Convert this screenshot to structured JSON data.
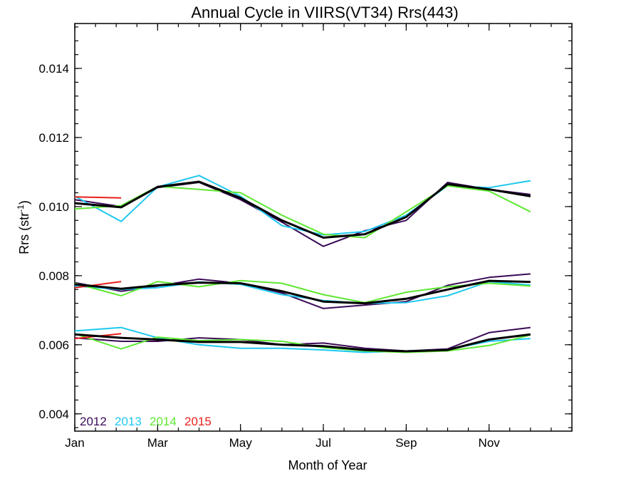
{
  "chart_data": {
    "type": "line",
    "title": "Annual Cycle in VIIRS(VT34) Rrs(443)",
    "xlabel": "Month of Year",
    "ylabel_main": "Rrs (str",
    "ylabel_sup": "-1",
    "ylabel_close": ")",
    "xlim": [
      0.5,
      12.5
    ],
    "ylim": [
      0.0035,
      0.0153
    ],
    "xticks": [
      {
        "value": 0.5,
        "label": "Jan"
      },
      {
        "value": 2.5,
        "label": "Mar"
      },
      {
        "value": 4.5,
        "label": "May"
      },
      {
        "value": 6.5,
        "label": "Jul"
      },
      {
        "value": 8.5,
        "label": "Sep"
      },
      {
        "value": 10.5,
        "label": "Nov"
      }
    ],
    "yticks": [
      {
        "value": 0.004,
        "label": "0.004"
      },
      {
        "value": 0.006,
        "label": "0.006"
      },
      {
        "value": 0.008,
        "label": "0.008"
      },
      {
        "value": 0.01,
        "label": "0.010"
      },
      {
        "value": 0.012,
        "label": "0.012"
      },
      {
        "value": 0.014,
        "label": "0.014"
      }
    ],
    "legend_position": "bottom-left",
    "series": [
      {
        "name": "2012",
        "color": "#3b0a57",
        "group": "upper",
        "x": [
          0.5,
          1.62,
          2.5,
          3.5,
          4.5,
          5.5,
          6.5,
          7.5,
          8.5,
          9.5,
          10.5,
          11.5
        ],
        "y": [
          0.0102,
          0.01,
          0.01055,
          0.0107,
          0.0102,
          0.00955,
          0.00885,
          0.0093,
          0.0096,
          0.0107,
          0.0105,
          0.01035
        ]
      },
      {
        "name": "2013",
        "color": "#1ec8f0",
        "group": "upper",
        "x": [
          0.5,
          1.62,
          2.5,
          3.5,
          4.5,
          5.5,
          6.5,
          7.5,
          8.5,
          9.5,
          10.5,
          11.5
        ],
        "y": [
          0.0103,
          0.00957,
          0.01057,
          0.0109,
          0.0103,
          0.00945,
          0.00918,
          0.00928,
          0.00975,
          0.0106,
          0.01055,
          0.01075
        ]
      },
      {
        "name": "2014",
        "color": "#5ee832",
        "group": "upper",
        "x": [
          0.5,
          1.62,
          2.5,
          3.5,
          4.5,
          5.5,
          6.5,
          7.5,
          8.5,
          9.5,
          10.5,
          11.5
        ],
        "y": [
          0.00993,
          0.01003,
          0.01058,
          0.0105,
          0.0104,
          0.00975,
          0.0092,
          0.0091,
          0.00985,
          0.0106,
          0.01045,
          0.00985
        ]
      },
      {
        "name": "2015",
        "color": "#e8201c",
        "group": "upper",
        "x": [
          0.5,
          1.62
        ],
        "y": [
          0.01028,
          0.01025
        ]
      },
      {
        "name": "",
        "color": "#000000",
        "group": "upper-mean",
        "x": [
          0.5,
          1.62,
          2.5,
          3.5,
          4.5,
          5.5,
          6.5,
          7.5,
          8.5,
          9.5,
          10.5,
          11.5
        ],
        "y": [
          0.0101,
          0.00998,
          0.01057,
          0.01072,
          0.01025,
          0.0096,
          0.0091,
          0.0092,
          0.0097,
          0.01065,
          0.0105,
          0.0103
        ]
      },
      {
        "name": "2012",
        "color": "#3b0a57",
        "group": "middle",
        "x": [
          0.5,
          1.62,
          2.5,
          3.5,
          4.5,
          5.5,
          6.5,
          7.5,
          8.5,
          9.5,
          10.5,
          11.5
        ],
        "y": [
          0.0078,
          0.00755,
          0.0077,
          0.0079,
          0.00778,
          0.0075,
          0.00705,
          0.00715,
          0.00725,
          0.00772,
          0.00795,
          0.00805
        ]
      },
      {
        "name": "2013",
        "color": "#1ec8f0",
        "group": "middle",
        "x": [
          0.5,
          1.62,
          2.5,
          3.5,
          4.5,
          5.5,
          6.5,
          7.5,
          8.5,
          9.5,
          10.5,
          11.5
        ],
        "y": [
          0.0077,
          0.0076,
          0.00765,
          0.00782,
          0.00775,
          0.00745,
          0.00728,
          0.0072,
          0.00722,
          0.00742,
          0.00783,
          0.00773
        ]
      },
      {
        "name": "2014",
        "color": "#5ee832",
        "group": "middle",
        "x": [
          0.5,
          1.62,
          2.5,
          3.5,
          4.5,
          5.5,
          6.5,
          7.5,
          8.5,
          9.5,
          10.5,
          11.5
        ],
        "y": [
          0.00778,
          0.00742,
          0.00783,
          0.00768,
          0.00786,
          0.00778,
          0.00745,
          0.00722,
          0.00752,
          0.00768,
          0.00778,
          0.0077
        ]
      },
      {
        "name": "2015",
        "color": "#e8201c",
        "group": "middle",
        "x": [
          0.5,
          1.62
        ],
        "y": [
          0.00765,
          0.00783
        ]
      },
      {
        "name": "",
        "color": "#000000",
        "group": "middle-mean",
        "x": [
          0.5,
          1.62,
          2.5,
          3.5,
          4.5,
          5.5,
          6.5,
          7.5,
          8.5,
          9.5,
          10.5,
          11.5
        ],
        "y": [
          0.00775,
          0.00762,
          0.00772,
          0.0078,
          0.00778,
          0.00755,
          0.00725,
          0.0072,
          0.00733,
          0.0076,
          0.00785,
          0.00782
        ]
      },
      {
        "name": "2012",
        "color": "#3b0a57",
        "group": "lower",
        "x": [
          0.5,
          1.62,
          2.5,
          3.5,
          4.5,
          5.5,
          6.5,
          7.5,
          8.5,
          9.5,
          10.5,
          11.5
        ],
        "y": [
          0.0062,
          0.0061,
          0.0061,
          0.0062,
          0.00615,
          0.006,
          0.00605,
          0.0059,
          0.00582,
          0.00588,
          0.00635,
          0.0065
        ]
      },
      {
        "name": "2013",
        "color": "#1ec8f0",
        "group": "lower",
        "x": [
          0.5,
          1.62,
          2.5,
          3.5,
          4.5,
          5.5,
          6.5,
          7.5,
          8.5,
          9.5,
          10.5,
          11.5
        ],
        "y": [
          0.0064,
          0.0065,
          0.0062,
          0.006,
          0.0059,
          0.0059,
          0.00585,
          0.00578,
          0.00582,
          0.00586,
          0.0061,
          0.00618
        ]
      },
      {
        "name": "2014",
        "color": "#5ee832",
        "group": "lower",
        "x": [
          0.5,
          1.62,
          2.5,
          3.5,
          4.5,
          5.5,
          6.5,
          7.5,
          8.5,
          9.5,
          10.5,
          11.5
        ],
        "y": [
          0.00632,
          0.00588,
          0.00622,
          0.00612,
          0.00615,
          0.0061,
          0.00592,
          0.00582,
          0.00578,
          0.00582,
          0.00598,
          0.00628
        ]
      },
      {
        "name": "2015",
        "color": "#e8201c",
        "group": "lower",
        "x": [
          0.5,
          1.62
        ],
        "y": [
          0.00618,
          0.00632
        ]
      },
      {
        "name": "",
        "color": "#000000",
        "group": "lower-mean",
        "x": [
          0.5,
          1.62,
          2.5,
          3.5,
          4.5,
          5.5,
          6.5,
          7.5,
          8.5,
          9.5,
          10.5,
          11.5
        ],
        "y": [
          0.0063,
          0.0062,
          0.00615,
          0.00608,
          0.00608,
          0.006,
          0.00596,
          0.00585,
          0.00581,
          0.00585,
          0.00615,
          0.0063
        ]
      }
    ],
    "legend": [
      {
        "label": "2012",
        "color": "#3b0a57"
      },
      {
        "label": "2013",
        "color": "#1ec8f0"
      },
      {
        "label": "2014",
        "color": "#5ee832"
      },
      {
        "label": "2015",
        "color": "#e8201c"
      }
    ]
  }
}
